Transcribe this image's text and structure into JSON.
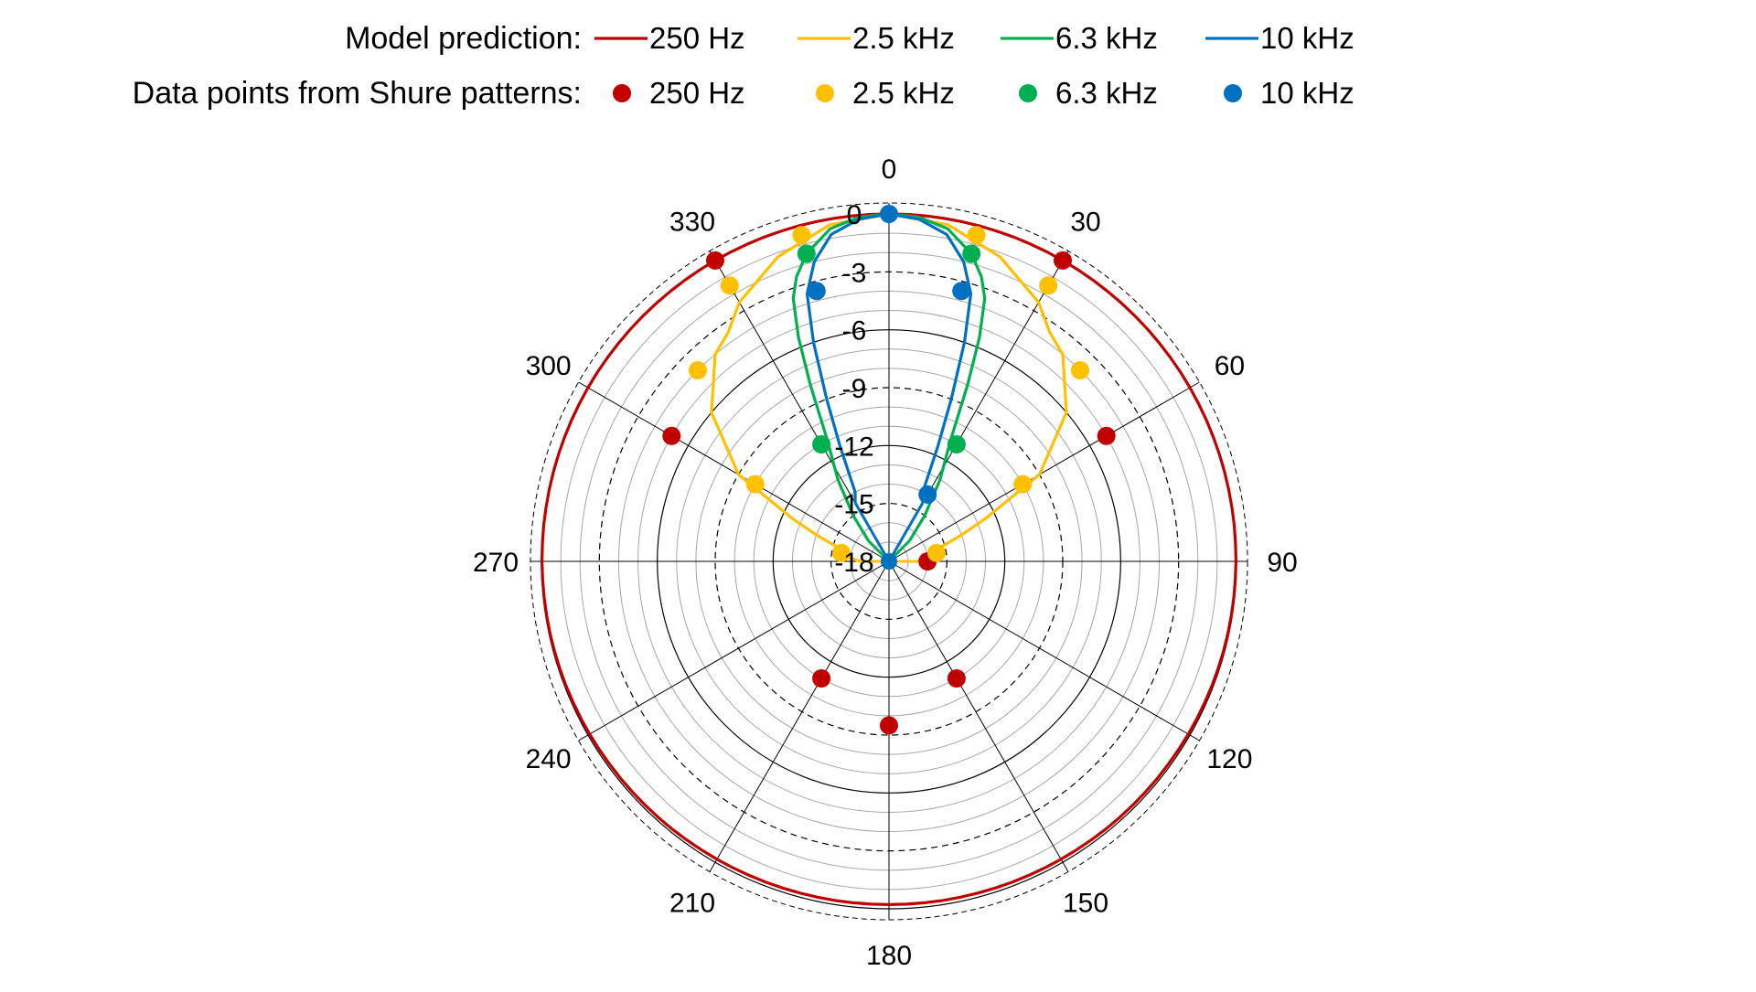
{
  "chart_data": {
    "type": "polar",
    "title": "",
    "legend": {
      "placement": "top",
      "model_label": "Model prediction:",
      "data_label": "Data points from Shure patterns:"
    },
    "radial_axis": {
      "unit": "dB",
      "range": [
        -18,
        0
      ],
      "ticks": [
        0,
        -3,
        -6,
        -9,
        -12,
        -15,
        -18
      ],
      "tick_labels": [
        "0",
        "-3",
        "-6",
        "-9",
        "-12",
        "-15",
        "-18"
      ],
      "solid_rings": [
        0,
        -6,
        -12,
        -18
      ],
      "dashed_rings": [
        -3,
        -9,
        -15
      ],
      "minor_rings": [
        -1,
        -2,
        -4,
        -5,
        -7,
        -8,
        -10,
        -11,
        -13,
        -14,
        -16,
        -17
      ]
    },
    "angular_axis": {
      "unit": "deg",
      "direction": "clockwise",
      "zero": "top",
      "ticks": [
        0,
        30,
        60,
        90,
        120,
        150,
        180,
        210,
        240,
        270,
        300,
        330
      ],
      "tick_labels": [
        "0",
        "30",
        "60",
        "90",
        "120",
        "150",
        "180",
        "210",
        "240",
        "270",
        "300",
        "330"
      ]
    },
    "series": [
      {
        "name": "250 Hz",
        "color": "#C00000",
        "model": {
          "angles": [
            -180,
            -165,
            -150,
            -135,
            -120,
            -105,
            -90,
            -75,
            -60,
            -45,
            -30,
            -15,
            0,
            15,
            30,
            45,
            60,
            75,
            90,
            105,
            120,
            135,
            150,
            165,
            180
          ],
          "values": [
            -0.22,
            -0.21,
            -0.18,
            -0.14,
            -0.1,
            -0.06,
            -0.03,
            -0.01,
            0,
            0,
            0,
            0,
            0,
            0,
            0,
            0,
            0,
            -0.01,
            -0.03,
            -0.06,
            -0.1,
            -0.14,
            -0.18,
            -0.21,
            -0.22
          ]
        },
        "points": {
          "angles": [
            -30,
            -60,
            60,
            30,
            90,
            150,
            -150,
            180
          ],
          "values": [
            0,
            -5,
            -5,
            0,
            -16,
            -11,
            -11,
            -9.5
          ]
        }
      },
      {
        "name": "2.5 kHz",
        "color": "#FFC000",
        "model": {
          "angles": [
            -90,
            -82,
            -75,
            -70,
            -66,
            -60,
            -50,
            -40,
            -35,
            -30,
            -20,
            -10,
            0,
            10,
            20,
            30,
            35,
            40,
            50,
            60,
            66,
            70,
            75,
            82,
            90
          ],
          "values": [
            -16.5,
            -15.5,
            -15.3,
            -14,
            -12.5,
            -9,
            -6,
            -4,
            -3.5,
            -2.5,
            -1.2,
            -0.3,
            0,
            -0.3,
            -1.2,
            -2.5,
            -3.5,
            -4,
            -6,
            -9,
            -12.5,
            -14,
            -15.3,
            -15.5,
            -16.5
          ]
        },
        "points": {
          "angles": [
            -15,
            -30,
            -45,
            -60,
            -80,
            15,
            30,
            45,
            60,
            80
          ],
          "values": [
            -0.5,
            -1.5,
            -4,
            -10,
            -15.5,
            -0.5,
            -1.5,
            -4,
            -10,
            -15.5
          ]
        }
      },
      {
        "name": "6.3 kHz",
        "color": "#00B050",
        "model": {
          "angles": [
            -45,
            -38,
            -32,
            -27,
            -24,
            -22,
            -20,
            -18,
            -15,
            -10,
            -5,
            0,
            5,
            10,
            15,
            18,
            20,
            22,
            24,
            27,
            32,
            38,
            45
          ],
          "values": [
            -16.5,
            -15,
            -13,
            -11,
            -8,
            -5.5,
            -3.5,
            -2.5,
            -1.5,
            -0.5,
            -0.1,
            0,
            -0.1,
            -0.5,
            -1.5,
            -2.5,
            -3.5,
            -5.5,
            -8,
            -11,
            -13,
            -15,
            -16.5
          ]
        },
        "points": {
          "angles": [
            -15,
            -30,
            15,
            30
          ],
          "values": [
            -1.5,
            -11,
            -1.5,
            -11
          ]
        }
      },
      {
        "name": "10 kHz",
        "color": "#0070C0",
        "model": {
          "angles": [
            -30,
            -26,
            -23,
            -21,
            -19,
            -17,
            -14,
            -10,
            -5,
            0,
            5,
            10,
            14,
            17,
            19,
            21,
            23,
            26,
            30
          ],
          "values": [
            -14.5,
            -14,
            -11.5,
            -9,
            -6,
            -3.5,
            -2,
            -0.8,
            -0.2,
            0,
            -0.2,
            -0.8,
            -2,
            -3.5,
            -6,
            -9,
            -11.5,
            -14,
            -14.5
          ]
        },
        "points": {
          "angles": [
            0,
            -15,
            15,
            30
          ],
          "values": [
            0,
            -3.5,
            -3.5,
            -14
          ]
        }
      }
    ]
  }
}
